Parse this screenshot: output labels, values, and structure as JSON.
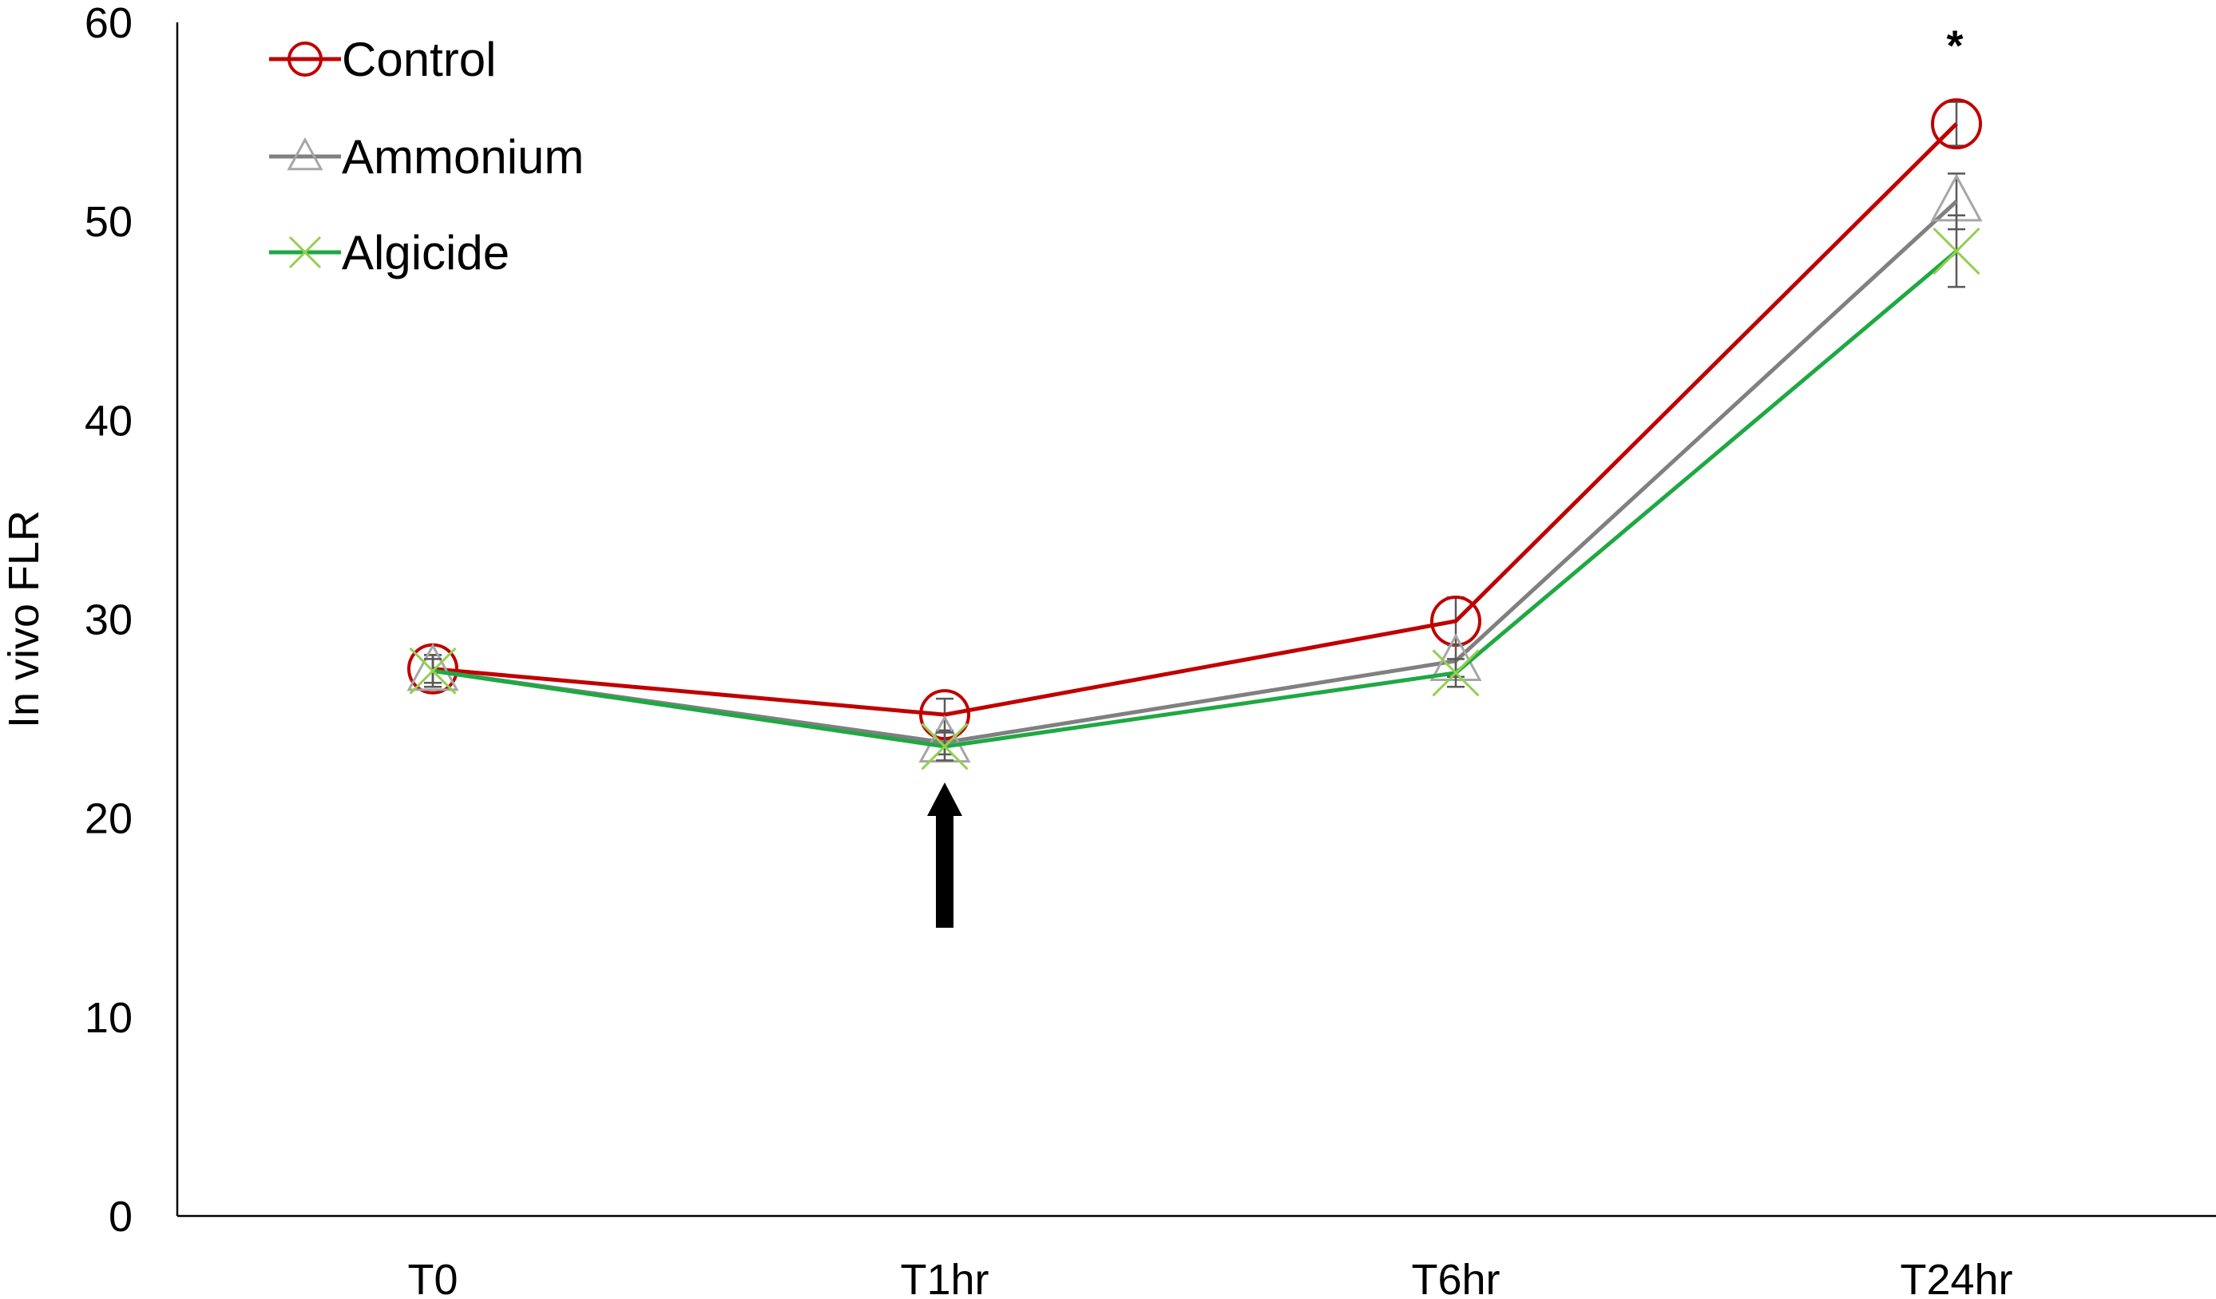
{
  "chart_data": {
    "type": "line",
    "categories": [
      "T0",
      "T1hr",
      "T6hr",
      "T24hr"
    ],
    "ylabel": "In vivo FLR",
    "xlabel": "",
    "ylim": [
      0,
      60
    ],
    "yticks": [
      0,
      10,
      20,
      30,
      40,
      50,
      60
    ],
    "grid": false,
    "legend_position": "top-left",
    "series": [
      {
        "name": "Control",
        "marker": "circle",
        "color": "#C00000",
        "values": [
          27.5,
          25.2,
          29.9,
          54.9
        ],
        "errors": [
          0.7,
          0.8,
          1.2,
          1.1
        ]
      },
      {
        "name": "Ammonium",
        "marker": "triangle",
        "color": "#808080",
        "values": [
          27.4,
          23.8,
          27.9,
          51.0
        ],
        "errors": [
          0.8,
          0.6,
          0.8,
          1.4
        ]
      },
      {
        "name": "Algicide",
        "marker": "x",
        "color": "#1FA843",
        "values": [
          27.4,
          23.6,
          27.3,
          48.5
        ],
        "errors": [
          0.6,
          0.7,
          0.7,
          1.8
        ]
      }
    ],
    "annotations": [
      {
        "type": "text",
        "text": "*",
        "category": "T24hr"
      },
      {
        "type": "arrow",
        "category": "T1hr",
        "direction": "up"
      }
    ]
  }
}
